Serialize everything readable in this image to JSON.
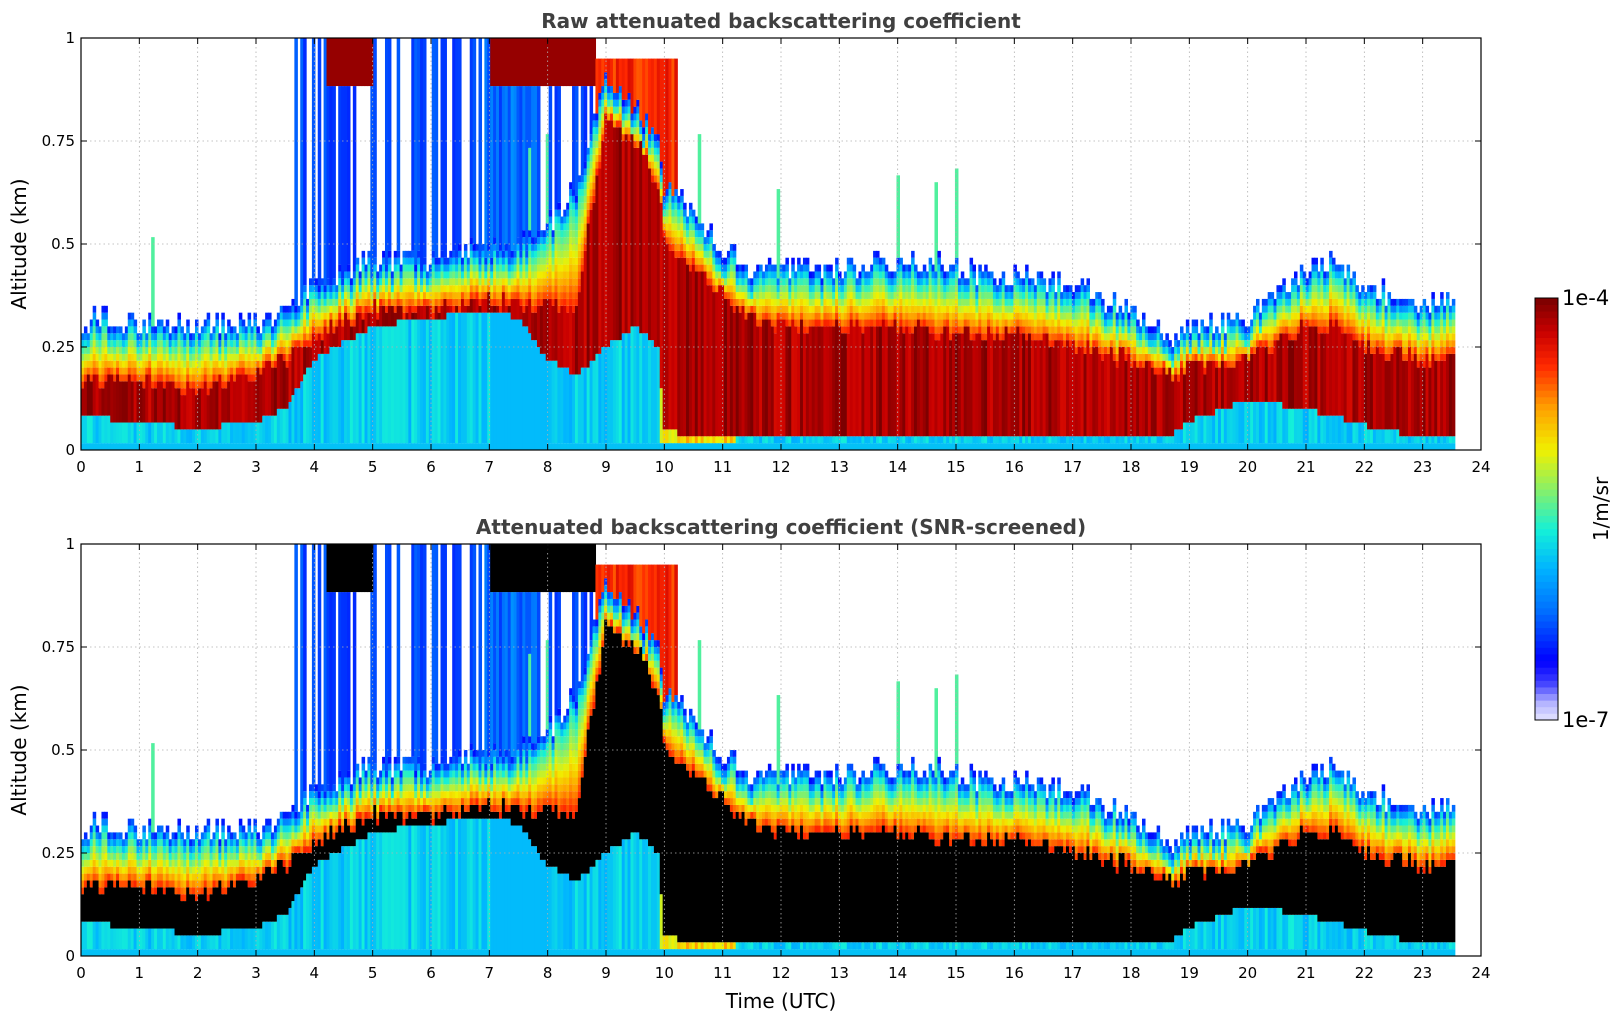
{
  "chart_data": [
    {
      "type": "heatmap",
      "title": "Raw attenuated backscattering coefficient",
      "xlabel": "",
      "ylabel": "Altitude (km)",
      "xlim": [
        0,
        24
      ],
      "ylim": [
        0,
        1
      ],
      "x_ticks": [
        "0",
        "1",
        "2",
        "3",
        "4",
        "5",
        "6",
        "7",
        "8",
        "9",
        "10",
        "11",
        "12",
        "13",
        "14",
        "15",
        "16",
        "17",
        "18",
        "19",
        "20",
        "21",
        "22",
        "23",
        "24"
      ],
      "y_ticks": [
        "0",
        "0.25",
        "0.5",
        "0.75",
        "1"
      ],
      "grid": true,
      "data_end_hour": 23.55,
      "colormap": "jet",
      "profile": {
        "hours": [
          0,
          1,
          2,
          3,
          3.5,
          4,
          5,
          6,
          7,
          7.5,
          8,
          8.5,
          9,
          9.5,
          9.9,
          10,
          10.5,
          11,
          11.5,
          12,
          13,
          14,
          15,
          16,
          17,
          18,
          18.7,
          19,
          20,
          21,
          21.5,
          22,
          23,
          23.55
        ],
        "layer_top_km": [
          0.28,
          0.27,
          0.26,
          0.27,
          0.3,
          0.36,
          0.42,
          0.42,
          0.45,
          0.45,
          0.5,
          0.6,
          0.85,
          0.8,
          0.7,
          0.6,
          0.55,
          0.45,
          0.4,
          0.4,
          0.4,
          0.42,
          0.4,
          0.38,
          0.36,
          0.3,
          0.23,
          0.25,
          0.28,
          0.4,
          0.42,
          0.35,
          0.32,
          0.33
        ],
        "core_top_km": [
          0.17,
          0.17,
          0.15,
          0.18,
          0.22,
          0.28,
          0.34,
          0.34,
          0.36,
          0.36,
          0.34,
          0.36,
          0.8,
          0.75,
          0.65,
          0.5,
          0.45,
          0.38,
          0.32,
          0.3,
          0.3,
          0.3,
          0.28,
          0.28,
          0.25,
          0.22,
          0.18,
          0.2,
          0.22,
          0.3,
          0.3,
          0.25,
          0.22,
          0.22
        ],
        "core_bottom_km": [
          0.08,
          0.07,
          0.05,
          0.07,
          0.1,
          0.22,
          0.3,
          0.32,
          0.34,
          0.32,
          0.22,
          0.18,
          0.25,
          0.3,
          0.25,
          0.05,
          0.03,
          0.03,
          0.03,
          0.03,
          0.03,
          0.03,
          0.03,
          0.03,
          0.03,
          0.03,
          0.04,
          0.07,
          0.12,
          0.1,
          0.08,
          0.06,
          0.03,
          0.03
        ]
      }
    },
    {
      "type": "heatmap",
      "title": "Attenuated backscattering coefficient (SNR-screened)",
      "xlabel": "Time (UTC)",
      "ylabel": "Altitude (km)",
      "xlim": [
        0,
        24
      ],
      "ylim": [
        0,
        1
      ],
      "x_ticks": [
        "0",
        "1",
        "2",
        "3",
        "4",
        "5",
        "6",
        "7",
        "8",
        "9",
        "10",
        "11",
        "12",
        "13",
        "14",
        "15",
        "16",
        "17",
        "18",
        "19",
        "20",
        "21",
        "22",
        "23",
        "24"
      ],
      "y_ticks": [
        "0",
        "0.25",
        "0.5",
        "0.75",
        "1"
      ],
      "grid": true,
      "data_end_hour": 23.55,
      "colormap": "jet",
      "saturated_color": "#000000"
    }
  ],
  "colorbar": {
    "label": "1/m/sr",
    "max_label": "1e-4",
    "min_label": "1e-7",
    "scale": "log"
  }
}
